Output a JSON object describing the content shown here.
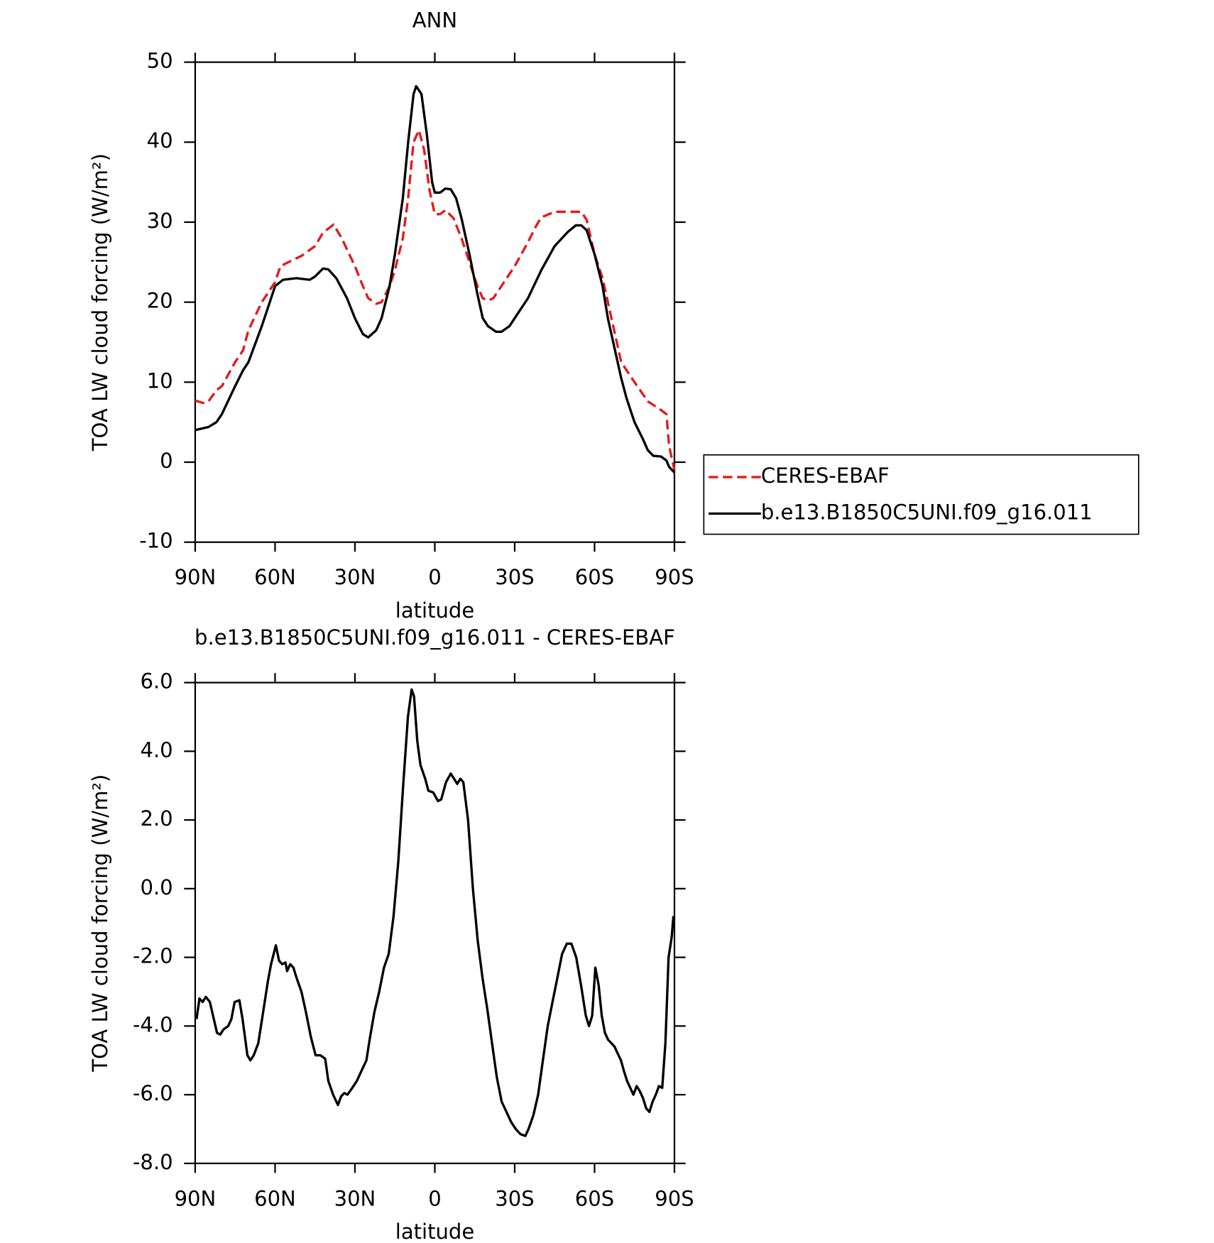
{
  "chart_data": [
    {
      "type": "line",
      "title": "ANN",
      "xlabel": "latitude",
      "ylabel": "TOA LW cloud forcing (W/m²)",
      "xlim": [
        90,
        -90
      ],
      "xticks": [
        {
          "value": 90,
          "label": "90N"
        },
        {
          "value": 60,
          "label": "60N"
        },
        {
          "value": 30,
          "label": "30N"
        },
        0,
        {
          "value": -30,
          "label": "30S"
        },
        {
          "value": -60,
          "label": "60S"
        },
        {
          "value": -90,
          "label": "90S"
        }
      ],
      "ylim": [
        -10,
        50
      ],
      "yticks": [
        -10,
        0,
        10,
        20,
        30,
        40,
        50
      ],
      "legend": "outside-right",
      "series": [
        {
          "name": "CERES-EBAF",
          "color": "#e41a1c",
          "dash": true,
          "x": [
            90,
            87,
            85,
            82,
            80,
            75,
            72,
            70,
            65,
            62,
            60,
            58,
            55,
            50,
            45,
            42,
            38,
            35,
            30,
            27,
            25,
            22,
            20,
            17,
            15,
            12,
            10,
            8,
            6,
            4,
            2,
            0,
            -2,
            -4,
            -7,
            -10,
            -13,
            -16,
            -18,
            -20,
            -22,
            -25,
            -30,
            -35,
            -38,
            -40,
            -45,
            -50,
            -53,
            -55,
            -57,
            -60,
            -63,
            -65,
            -68,
            -70,
            -73,
            -75,
            -80,
            -85,
            -87,
            -88,
            -90
          ],
          "values": [
            7.7,
            7.4,
            7.6,
            9,
            9.5,
            12.5,
            14,
            16.5,
            20,
            21.5,
            22.5,
            24.5,
            25,
            25.8,
            27,
            28.7,
            29.7,
            28,
            24.5,
            22,
            20.5,
            19.8,
            20,
            22,
            24,
            28,
            33,
            40,
            41.5,
            39,
            34,
            31,
            31,
            31.5,
            30.5,
            28,
            25,
            22,
            20.5,
            20.2,
            20.5,
            22,
            24.5,
            27.5,
            29.5,
            30.6,
            31.3,
            31.3,
            31.3,
            31.3,
            30.3,
            26,
            23,
            20,
            15.5,
            12.5,
            11,
            10,
            7.6,
            6.5,
            6,
            2,
            -1
          ]
        },
        {
          "name": "b.e13.B1850C5UNI.f09_g16.011",
          "color": "#000000",
          "dash": false,
          "x": [
            90,
            85,
            82,
            80,
            75,
            72,
            70,
            65,
            62,
            60,
            57,
            52,
            47,
            45,
            42,
            40,
            37,
            33,
            30,
            27,
            25,
            22,
            20,
            17,
            15,
            12,
            10,
            8,
            7,
            5,
            3,
            1,
            0,
            -2,
            -4,
            -6,
            -8,
            -10,
            -13,
            -16,
            -18,
            -20,
            -23,
            -25,
            -28,
            -30,
            -35,
            -40,
            -45,
            -50,
            -53,
            -55,
            -57,
            -60,
            -63,
            -65,
            -67,
            -70,
            -72,
            -75,
            -78,
            -80,
            -82,
            -85,
            -87,
            -88,
            -90
          ],
          "values": [
            4,
            4.4,
            5,
            6,
            9.5,
            11.5,
            12.5,
            17,
            20,
            22,
            22.8,
            23,
            22.8,
            23.2,
            24.2,
            24.1,
            23,
            20.5,
            18,
            16,
            15.6,
            16.5,
            18,
            22,
            26,
            33,
            40,
            46,
            47,
            46,
            41,
            35,
            33.7,
            33.7,
            34.2,
            34.1,
            33,
            30.5,
            26,
            21,
            18,
            17,
            16.3,
            16.3,
            17,
            18,
            20.5,
            24,
            27,
            28.8,
            29.6,
            29.6,
            29,
            26,
            22,
            18,
            15,
            10.5,
            8,
            5,
            3,
            1.5,
            0.8,
            0.7,
            0.2,
            -0.6,
            -1.3
          ]
        }
      ]
    },
    {
      "type": "line",
      "title": "b.e13.B1850C5UNI.f09_g16.011 - CERES-EBAF",
      "xlabel": "latitude",
      "ylabel": "TOA LW cloud forcing (W/m²)",
      "xlim": [
        90,
        -90
      ],
      "xticks": [
        {
          "value": 90,
          "label": "90N"
        },
        {
          "value": 60,
          "label": "60N"
        },
        {
          "value": 30,
          "label": "30N"
        },
        0,
        {
          "value": -30,
          "label": "30S"
        },
        {
          "value": -60,
          "label": "60S"
        },
        {
          "value": -90,
          "label": "90S"
        }
      ],
      "ylim": [
        -8,
        6
      ],
      "yticks": [
        {
          "value": -8,
          "label": "-8.0"
        },
        {
          "value": -6,
          "label": "-6.0"
        },
        {
          "value": -4,
          "label": "-4.0"
        },
        {
          "value": -2,
          "label": "-2.0"
        },
        {
          "value": 0,
          "label": "0.0"
        },
        {
          "value": 2,
          "label": "2.0"
        },
        {
          "value": 4,
          "label": "4.0"
        },
        {
          "value": 6,
          "label": "6.0"
        }
      ],
      "series": [
        {
          "color": "#000000",
          "dash": false,
          "x": [
            89.5,
            88.4,
            87.2,
            86,
            84.5,
            83,
            81.8,
            80.6,
            79.4,
            77.6,
            76.4,
            75.2,
            73.4,
            72.2,
            70.4,
            69.3,
            68,
            66.3,
            64.5,
            62.7,
            61.5,
            59.7,
            58.5,
            57.3,
            56.1,
            55.5,
            54.3,
            53.1,
            51.9,
            50.1,
            48.4,
            46.6,
            44.8,
            43,
            41.2,
            40,
            38.2,
            36.4,
            35.2,
            34,
            32.8,
            31,
            29.3,
            27.5,
            25.7,
            24.5,
            22.7,
            20.9,
            19.1,
            17.3,
            15.5,
            13.7,
            11.9,
            10.1,
            8.7,
            7.8,
            6.6,
            5.4,
            3.6,
            2.4,
            0.6,
            -1.2,
            -2.4,
            -4.2,
            -6,
            -7.2,
            -8.4,
            -9.6,
            -10.7,
            -12.5,
            -14.3,
            -16.1,
            -17.9,
            -19.7,
            -21.5,
            -23.3,
            -25.1,
            -26.9,
            -28.7,
            -30.4,
            -32.2,
            -34,
            -35.2,
            -37,
            -38.8,
            -40.6,
            -42.4,
            -44.2,
            -46,
            -47.8,
            -49.6,
            -51.3,
            -53.1,
            -54.9,
            -56.7,
            -57.9,
            -59.1,
            -60.3,
            -61.5,
            -62.7,
            -63.9,
            -65.1,
            -66.3,
            -67.5,
            -68.7,
            -69.9,
            -71,
            -72.2,
            -73.4,
            -74.6,
            -75.8,
            -77,
            -78.2,
            -79.4,
            -80.6,
            -81.8,
            -83,
            -84.2,
            -85.4,
            -86.6,
            -87.8,
            -89,
            -89.6
          ],
          "values": [
            -3.8,
            -3.2,
            -3.3,
            -3.15,
            -3.3,
            -3.8,
            -4.2,
            -4.25,
            -4.1,
            -4,
            -3.8,
            -3.3,
            -3.25,
            -3.8,
            -4.85,
            -5,
            -4.85,
            -4.5,
            -3.6,
            -2.7,
            -2.2,
            -1.65,
            -2.1,
            -2.2,
            -2.15,
            -2.4,
            -2.2,
            -2.3,
            -2.6,
            -3,
            -3.6,
            -4.3,
            -4.85,
            -4.85,
            -4.95,
            -5.6,
            -6,
            -6.3,
            -6.05,
            -5.95,
            -6,
            -5.8,
            -5.6,
            -5.3,
            -5,
            -4.4,
            -3.6,
            -3,
            -2.3,
            -1.9,
            -0.8,
            0.8,
            3,
            5,
            5.8,
            5.6,
            4.3,
            3.6,
            3.2,
            2.85,
            2.8,
            2.55,
            2.6,
            3.1,
            3.35,
            3.2,
            3.05,
            3.2,
            3.1,
            2,
            0,
            -1.5,
            -2.6,
            -3.5,
            -4.5,
            -5.5,
            -6.2,
            -6.5,
            -6.8,
            -7,
            -7.15,
            -7.2,
            -7,
            -6.6,
            -6,
            -5,
            -4,
            -3.3,
            -2.6,
            -1.9,
            -1.6,
            -1.6,
            -2,
            -2.8,
            -3.7,
            -4,
            -3.7,
            -2.3,
            -2.8,
            -3.7,
            -4.2,
            -4.4,
            -4.5,
            -4.6,
            -4.8,
            -5,
            -5.3,
            -5.6,
            -5.8,
            -6,
            -5.75,
            -5.9,
            -6.1,
            -6.4,
            -6.5,
            -6.2,
            -6,
            -5.75,
            -5.8,
            -4.5,
            -2,
            -1.4,
            -0.8
          ]
        }
      ]
    }
  ]
}
